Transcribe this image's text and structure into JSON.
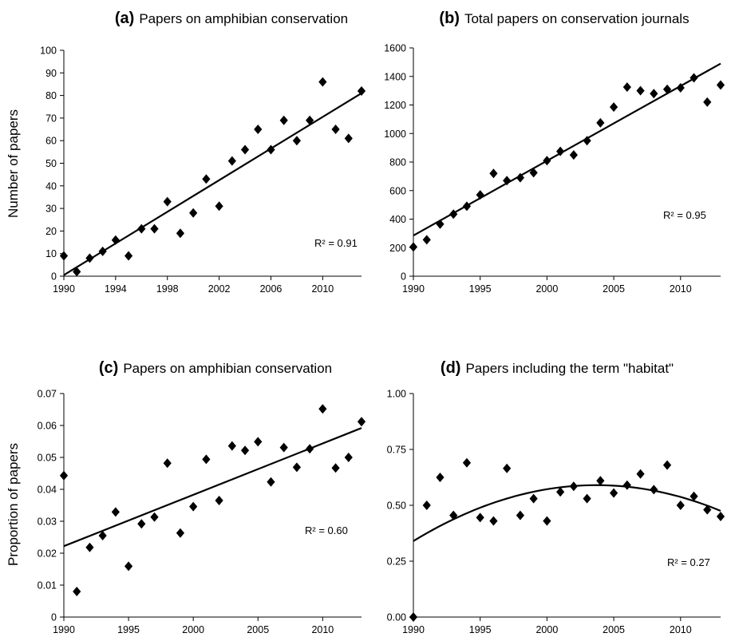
{
  "chart_data": [
    {
      "type": "scatter",
      "panel_letter": "(a)",
      "title": "Papers on amphibian conservation",
      "ylabel": "Number of papers",
      "xlabel": "",
      "xlim": [
        1990,
        2013
      ],
      "ylim": [
        0,
        100
      ],
      "xticks": [
        1990,
        1994,
        1998,
        2002,
        2006,
        2010
      ],
      "xtick_labels": [
        "1990",
        "1994",
        "1998",
        "2002",
        "2006",
        "2010"
      ],
      "yticks": [
        0,
        10,
        20,
        30,
        40,
        50,
        60,
        70,
        80,
        90,
        100
      ],
      "ytick_labels": [
        "0",
        "10",
        "20",
        "30",
        "40",
        "50",
        "60",
        "70",
        "80",
        "90",
        "100"
      ],
      "x": [
        1990,
        1991,
        1992,
        1993,
        1994,
        1995,
        1996,
        1997,
        1998,
        1999,
        2000,
        2001,
        2002,
        2003,
        2004,
        2005,
        2006,
        2007,
        2008,
        2009,
        2010,
        2011,
        2012,
        2013
      ],
      "y": [
        9,
        2,
        8,
        11,
        16,
        9,
        21,
        21,
        33,
        19,
        28,
        43,
        31,
        51,
        56,
        65,
        56,
        69,
        60,
        69,
        86,
        65,
        61,
        82
      ],
      "trendline": {
        "kind": "linear",
        "x": [
          1990,
          2013
        ],
        "y": [
          0.5,
          81
        ]
      },
      "r2_label": "R² = 0.91",
      "grid": false
    },
    {
      "type": "scatter",
      "panel_letter": "(b)",
      "title": "Total papers on conservation journals",
      "ylabel": "",
      "xlabel": "",
      "xlim": [
        1990,
        2013
      ],
      "ylim": [
        0,
        1600
      ],
      "xticks": [
        1990,
        1995,
        2000,
        2005,
        2010
      ],
      "xtick_labels": [
        "1990",
        "1995",
        "2000",
        "2005",
        "2010"
      ],
      "yticks": [
        0,
        200,
        400,
        600,
        800,
        1000,
        1200,
        1400,
        1600
      ],
      "ytick_labels": [
        "0",
        "200",
        "400",
        "600",
        "800",
        "1000",
        "1200",
        "1400",
        "1600"
      ],
      "x": [
        1990,
        1991,
        1992,
        1993,
        1994,
        1995,
        1996,
        1997,
        1998,
        1999,
        2000,
        2001,
        2002,
        2003,
        2004,
        2005,
        2006,
        2007,
        2008,
        2009,
        2010,
        2011,
        2012,
        2013
      ],
      "y": [
        205,
        255,
        365,
        435,
        490,
        570,
        720,
        670,
        690,
        725,
        810,
        875,
        850,
        950,
        1075,
        1185,
        1325,
        1300,
        1280,
        1310,
        1320,
        1390,
        1220,
        1340
      ],
      "trendline": {
        "kind": "linear",
        "x": [
          1990,
          2013
        ],
        "y": [
          285,
          1490
        ]
      },
      "r2_label": "R² = 0.95",
      "grid": false
    },
    {
      "type": "scatter",
      "panel_letter": "(c)",
      "title": "Papers on amphibian conservation",
      "ylabel": "Proportion of papers",
      "xlabel": "",
      "xlim": [
        1990,
        2013
      ],
      "ylim": [
        0,
        0.07
      ],
      "xticks": [
        1990,
        1995,
        2000,
        2005,
        2010
      ],
      "xtick_labels": [
        "1990",
        "1995",
        "2000",
        "2005",
        "2010"
      ],
      "yticks": [
        0,
        0.01,
        0.02,
        0.03,
        0.04,
        0.05,
        0.06,
        0.07
      ],
      "ytick_labels": [
        "0",
        "0.01",
        "0.02",
        "0.03",
        "0.04",
        "0.05",
        "0.06",
        "0.07"
      ],
      "x": [
        1990,
        1991,
        1992,
        1993,
        1994,
        1995,
        1996,
        1997,
        1998,
        1999,
        2000,
        2001,
        2002,
        2003,
        2004,
        2005,
        2006,
        2007,
        2008,
        2009,
        2010,
        2011,
        2012,
        2013
      ],
      "y": [
        0.0443,
        0.008,
        0.0218,
        0.0255,
        0.0329,
        0.0159,
        0.0292,
        0.0313,
        0.0482,
        0.0263,
        0.0346,
        0.0494,
        0.0365,
        0.0536,
        0.0522,
        0.0549,
        0.0423,
        0.0531,
        0.0469,
        0.0527,
        0.0652,
        0.0467,
        0.05,
        0.0612
      ],
      "trendline": {
        "kind": "linear",
        "x": [
          1990,
          2013
        ],
        "y": [
          0.0222,
          0.0592
        ]
      },
      "r2_label": "R² = 0.60",
      "grid": false
    },
    {
      "type": "scatter",
      "panel_letter": "(d)",
      "title": "Papers including the term \"habitat\"",
      "ylabel": "",
      "xlabel": "",
      "xlim": [
        1990,
        2013
      ],
      "ylim": [
        0,
        1
      ],
      "xticks": [
        1990,
        1995,
        2000,
        2005,
        2010
      ],
      "xtick_labels": [
        "1990",
        "1995",
        "2000",
        "2005",
        "2010"
      ],
      "yticks": [
        0,
        0.25,
        0.5,
        0.75,
        1
      ],
      "ytick_labels": [
        "0.00",
        "0.25",
        "0.50",
        "0.75",
        "1.00"
      ],
      "x": [
        1990,
        1991,
        1992,
        1993,
        1994,
        1995,
        1996,
        1997,
        1998,
        1999,
        2000,
        2001,
        2002,
        2003,
        2004,
        2005,
        2006,
        2007,
        2008,
        2009,
        2010,
        2011,
        2012,
        2013
      ],
      "y": [
        0.0,
        0.5,
        0.625,
        0.455,
        0.69,
        0.445,
        0.43,
        0.665,
        0.455,
        0.53,
        0.43,
        0.56,
        0.585,
        0.53,
        0.61,
        0.555,
        0.59,
        0.64,
        0.57,
        0.68,
        0.5,
        0.54,
        0.48,
        0.45
      ],
      "trendline": {
        "kind": "quadratic",
        "x": [
          1990,
          2004,
          2013
        ],
        "y": [
          0.34,
          0.59,
          0.475
        ]
      },
      "r2_label": "R² = 0.27",
      "grid": false
    }
  ]
}
